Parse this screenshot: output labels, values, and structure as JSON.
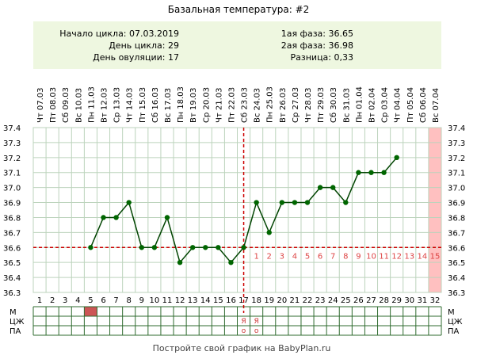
{
  "chart_data": {
    "type": "line",
    "title": "Базальная температура: #2",
    "info": {
      "cycle_start": "Начало цикла: 07.03.2019",
      "cycle_day": "День цикла: 29",
      "ovulation_day": "День овуляции: 17",
      "phase1": "1ая фаза: 36.65",
      "phase2": "2ая фаза: 36.98",
      "difference": "Разница: 0,33"
    },
    "dates": [
      "Чт 07.03",
      "Пт 08.03",
      "Сб 09.03",
      "Вс 10.03",
      "Пн 11.03",
      "Вт 12.03",
      "Ср 13.03",
      "Чт 14.03",
      "Пт 15.03",
      "Сб 16.03",
      "Вс 17.03",
      "Пн 18.03",
      "Вт 19.03",
      "Ср 20.03",
      "Чт 21.03",
      "Пт 22.03",
      "Сб 23.03",
      "Вс 24.03",
      "Пн 25.03",
      "Вт 26.03",
      "Ср 27.03",
      "Чт 28.03",
      "Пт 29.03",
      "Сб 30.03",
      "Вс 31.03",
      "Пн 01.04",
      "Вт 02.04",
      "Ср 03.04",
      "Чт 04.04",
      "Пт 05.04",
      "Сб 06.04",
      "Вс 07.04"
    ],
    "x": [
      1,
      2,
      3,
      4,
      5,
      6,
      7,
      8,
      9,
      10,
      11,
      12,
      13,
      14,
      15,
      16,
      17,
      18,
      19,
      20,
      21,
      22,
      23,
      24,
      25,
      26,
      27,
      28,
      29,
      30,
      31,
      32
    ],
    "y": [
      null,
      null,
      null,
      null,
      36.6,
      36.8,
      36.8,
      36.9,
      36.6,
      36.6,
      36.8,
      36.5,
      36.6,
      36.6,
      36.6,
      36.5,
      36.6,
      36.9,
      36.7,
      36.9,
      36.9,
      36.9,
      37.0,
      37.0,
      36.9,
      37.1,
      37.1,
      37.1,
      37.2,
      null,
      null,
      null
    ],
    "y_ticks": [
      "36.3",
      "36.4",
      "36.5",
      "36.6",
      "36.7",
      "36.8",
      "36.9",
      "37.0",
      "37.1",
      "37.2",
      "37.3",
      "37.4"
    ],
    "ylim": [
      36.3,
      37.4
    ],
    "coverline": 36.6,
    "ovulation_day_x": 17,
    "luteal_labels": [
      "1",
      "2",
      "3",
      "4",
      "5",
      "6",
      "7",
      "8",
      "9",
      "10",
      "11",
      "12",
      "13",
      "14",
      "15"
    ],
    "highlight_day": 32,
    "rows": [
      {
        "label": "М",
        "marks": [
          {
            "day": 5,
            "type": "menstruation",
            "color": "#cc5555"
          }
        ]
      },
      {
        "label": "ЦЖ",
        "marks": [
          {
            "day": 17,
            "text": "Я"
          },
          {
            "day": 18,
            "text": "Я"
          }
        ]
      },
      {
        "label": "ПА",
        "marks": [
          {
            "day": 17,
            "text": "o"
          },
          {
            "day": 18,
            "text": "o"
          }
        ]
      }
    ],
    "footer": "Постройте свой график на BabyPlan.ru",
    "colors": {
      "line": "#004400",
      "point": "#006600",
      "coverline": "#cc0000",
      "grid": "#bcd3bc",
      "info_bg": "#eef7e0",
      "highlight": "#ffc0c0",
      "luteal_text": "#dd4444",
      "mark_text": "#cc3333"
    }
  }
}
